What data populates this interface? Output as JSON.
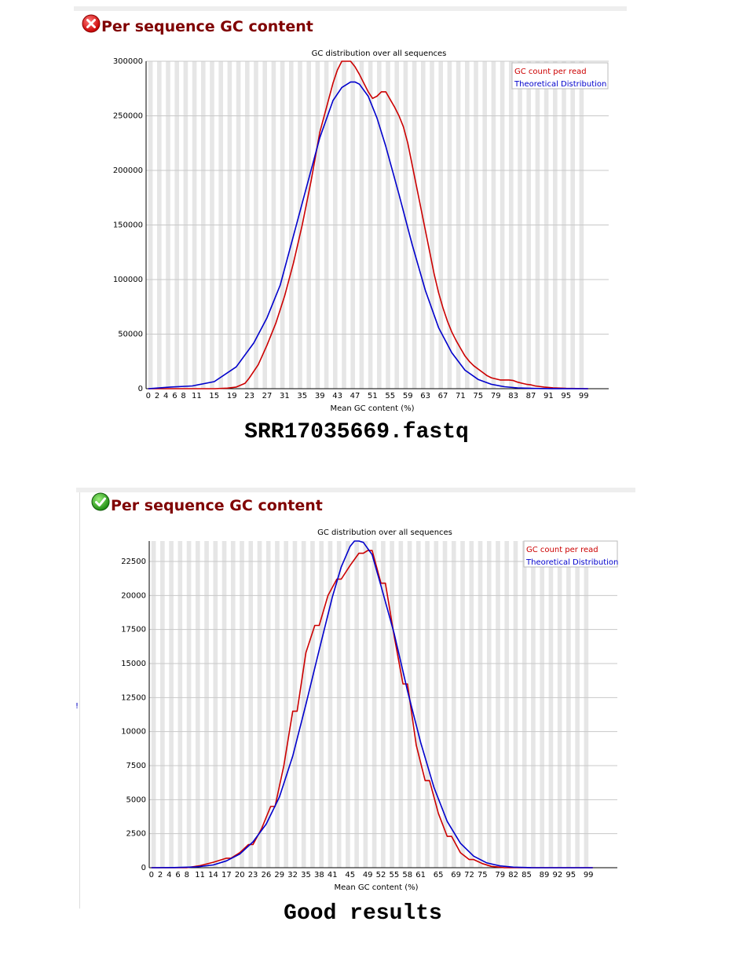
{
  "panels": [
    {
      "status": "fail",
      "status_icon": "fail-cross-icon",
      "heading": "Per sequence GC content",
      "caption": "SRR17035669.fastq"
    },
    {
      "status": "pass",
      "status_icon": "pass-check-icon",
      "heading": "Per sequence GC content",
      "caption": "Good results"
    }
  ],
  "colors": {
    "heading": "#800000",
    "series_actual": "#cc0000",
    "series_theoretical": "#0000cc",
    "stripe": "#e6e6e6",
    "grid": "#c8c8c8"
  },
  "chart_data": [
    {
      "type": "line",
      "title": "GC distribution over all sequences",
      "xlabel": "Mean GC content (%)",
      "ylabel": "",
      "xlim": [
        0,
        100
      ],
      "ylim": [
        0,
        300000
      ],
      "yticks": [
        0,
        50000,
        100000,
        150000,
        200000,
        250000,
        300000
      ],
      "ytick_labels": [
        "0",
        "50000",
        "100000",
        "150000",
        "200000",
        "250000",
        "300000"
      ],
      "xtick_labels": [
        "0",
        "2",
        "4",
        "6",
        "8",
        "11",
        "15",
        "19",
        "23",
        "27",
        "31",
        "35",
        "39",
        "43",
        "47",
        "51",
        "55",
        "59",
        "63",
        "67",
        "71",
        "75",
        "79",
        "83",
        "87",
        "91",
        "95",
        "99"
      ],
      "xtick_values": [
        0,
        2,
        4,
        6,
        8,
        11,
        15,
        19,
        23,
        27,
        31,
        35,
        39,
        43,
        47,
        51,
        55,
        59,
        63,
        67,
        71,
        75,
        79,
        83,
        87,
        91,
        95,
        99
      ],
      "grid": true,
      "legend_position": "top-right",
      "series": [
        {
          "name": "GC count per read",
          "color": "#cc0000",
          "x": [
            0,
            10,
            15,
            18,
            20,
            22,
            23,
            25,
            27,
            29,
            31,
            33,
            35,
            37,
            39,
            41,
            42,
            43,
            44,
            45,
            46,
            47,
            48,
            49,
            50,
            51,
            52,
            53,
            54,
            55,
            56,
            57,
            58,
            59,
            60,
            61,
            62,
            63,
            64,
            65,
            66,
            67,
            68,
            69,
            70,
            71,
            72,
            73,
            74,
            75,
            76,
            77,
            78,
            79,
            80,
            81,
            82,
            83,
            84,
            85,
            86,
            87,
            88,
            90,
            92,
            95,
            100
          ],
          "y": [
            0,
            0,
            0,
            500,
            1500,
            5000,
            10000,
            22000,
            40000,
            60000,
            85000,
            115000,
            150000,
            190000,
            235000,
            265000,
            280000,
            292000,
            300000,
            303000,
            302000,
            295000,
            288000,
            280000,
            272000,
            266000,
            268000,
            272000,
            272000,
            265000,
            258000,
            250000,
            240000,
            225000,
            205000,
            185000,
            165000,
            145000,
            125000,
            105000,
            88000,
            74000,
            62000,
            52000,
            44000,
            37000,
            30000,
            25000,
            21000,
            18000,
            15000,
            12000,
            10000,
            9000,
            8000,
            8000,
            8000,
            7500,
            6000,
            5000,
            4000,
            3500,
            2500,
            1500,
            800,
            300,
            0
          ]
        },
        {
          "name": "Theoretical Distribution",
          "color": "#0000cc",
          "mean": 47,
          "sd": 9.5,
          "peak": 281000,
          "x": [
            0,
            5,
            10,
            15,
            20,
            24,
            27,
            30,
            33,
            36,
            39,
            42,
            44,
            46,
            47,
            48,
            50,
            52,
            54,
            57,
            60,
            63,
            66,
            69,
            72,
            75,
            78,
            81,
            84,
            88,
            92,
            100
          ],
          "y": [
            0,
            1500,
            2500,
            6500,
            20000,
            42000,
            65000,
            95000,
            140000,
            185000,
            230000,
            264000,
            276000,
            281000,
            281000,
            279000,
            268000,
            248000,
            222000,
            178000,
            132000,
            90000,
            56000,
            33000,
            17000,
            8500,
            4000,
            1800,
            700,
            200,
            50,
            0
          ]
        }
      ]
    },
    {
      "type": "line",
      "title": "GC distribution over all sequences",
      "xlabel": "Mean GC content (%)",
      "ylabel": "",
      "xlim": [
        0,
        100
      ],
      "ylim": [
        0,
        24000
      ],
      "yticks": [
        0,
        2500,
        5000,
        7500,
        10000,
        12500,
        15000,
        17500,
        20000,
        22500
      ],
      "ytick_labels": [
        "0",
        "2500",
        "5000",
        "7500",
        "10000",
        "12500",
        "15000",
        "17500",
        "20000",
        "22500"
      ],
      "xtick_labels": [
        "0",
        "2",
        "4",
        "6",
        "8",
        "11",
        "14",
        "17",
        "20",
        "23",
        "26",
        "29",
        "32",
        "35",
        "38",
        "41",
        "45",
        "49",
        "52",
        "55",
        "58",
        "61",
        "65",
        "69",
        "72",
        "75",
        "79",
        "82",
        "85",
        "89",
        "92",
        "95",
        "99"
      ],
      "xtick_values": [
        0,
        2,
        4,
        6,
        8,
        11,
        14,
        17,
        20,
        23,
        26,
        29,
        32,
        35,
        38,
        41,
        45,
        49,
        52,
        55,
        58,
        61,
        65,
        69,
        72,
        75,
        79,
        82,
        85,
        89,
        92,
        95,
        99
      ],
      "grid": true,
      "legend_position": "top-right",
      "series": [
        {
          "name": "GC count per read",
          "color": "#cc0000",
          "x": [
            0,
            8,
            11,
            14,
            17,
            18,
            20,
            22,
            23,
            25,
            27,
            28,
            30,
            32,
            33,
            35,
            37,
            38,
            40,
            42,
            43,
            45,
            47,
            48,
            49,
            50,
            52,
            53,
            55,
            57,
            58,
            60,
            62,
            63,
            65,
            67,
            68,
            70,
            72,
            73,
            75,
            77,
            80,
            85,
            90,
            100
          ],
          "y": [
            0,
            0,
            150,
            400,
            700,
            700,
            1100,
            1700,
            1700,
            2900,
            4500,
            4500,
            7500,
            11500,
            11500,
            15800,
            17800,
            17800,
            20000,
            21200,
            21200,
            22200,
            23100,
            23100,
            23300,
            23300,
            20900,
            20900,
            17000,
            13500,
            13500,
            9000,
            6400,
            6400,
            4000,
            2300,
            2300,
            1100,
            600,
            600,
            300,
            100,
            0,
            0,
            0,
            0
          ]
        },
        {
          "name": "Theoretical Distribution",
          "color": "#0000cc",
          "x": [
            0,
            5,
            10,
            14,
            17,
            20,
            23,
            26,
            29,
            32,
            35,
            38,
            41,
            43,
            45,
            46,
            47,
            48,
            50,
            52,
            55,
            58,
            61,
            64,
            67,
            70,
            73,
            76,
            79,
            82,
            86,
            90,
            100
          ],
          "y": [
            0,
            10,
            50,
            200,
            500,
            1000,
            1900,
            3200,
            5200,
            8200,
            12000,
            16000,
            19900,
            22100,
            23600,
            24000,
            24100,
            23900,
            23000,
            20700,
            17200,
            13000,
            9200,
            5900,
            3400,
            1800,
            850,
            350,
            130,
            40,
            5,
            0,
            0
          ]
        }
      ]
    }
  ]
}
